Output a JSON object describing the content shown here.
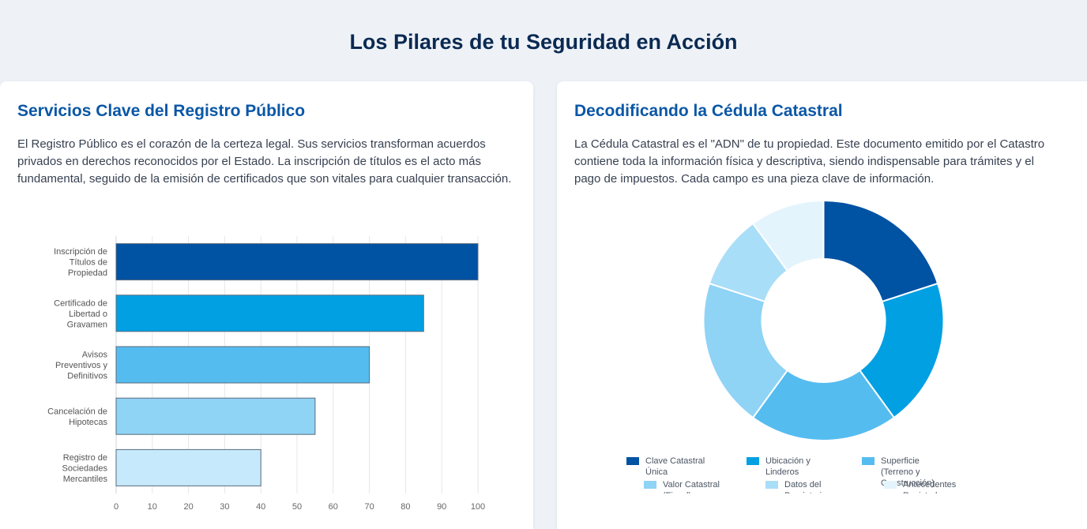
{
  "page": {
    "title": "Los Pilares de tu Seguridad en Acción"
  },
  "left_card": {
    "heading": "Servicios Clave del Registro Público",
    "description": "El Registro Público es el corazón de la certeza legal. Sus servicios transforman acuerdos privados en derechos reconocidos por el Estado. La inscripción de títulos es el acto más fundamental, seguido de la emisión de certificados que son vitales para cualquier transacción."
  },
  "right_card": {
    "heading": "Decodificando la Cédula Catastral",
    "description": "La Cédula Catastral es el \"ADN\" de tu propiedad. Este documento emitido por el Catastro contiene toda la información física y descriptiva, siendo indispensable para trámites y el pago de impuestos. Cada campo es una pieza clave de información."
  },
  "chart_data": [
    {
      "type": "bar",
      "orientation": "horizontal",
      "categories": [
        [
          "Inscripción de",
          "Títulos de",
          "Propiedad"
        ],
        [
          "Certificado de",
          "Libertad o",
          "Gravamen"
        ],
        [
          "Avisos",
          "Preventivos y",
          "Definitivos"
        ],
        [
          "Cancelación de",
          "Hipotecas"
        ],
        [
          "Registro de",
          "Sociedades",
          "Mercantiles"
        ]
      ],
      "values": [
        100,
        85,
        70,
        55,
        40
      ],
      "colors": [
        "#0052a3",
        "#00a0e3",
        "#55bcef",
        "#8fd3f5",
        "#c6e9fb"
      ],
      "xlim": [
        0,
        100
      ],
      "xticks": [
        0,
        10,
        20,
        30,
        40,
        50,
        60,
        70,
        80,
        90,
        100
      ],
      "grid": true,
      "legend": "none"
    },
    {
      "type": "pie",
      "variant": "doughnut",
      "labels": [
        [
          "Clave Catastral",
          "Única"
        ],
        [
          "Ubicación y",
          "Linderos"
        ],
        [
          "Superficie",
          "(Terreno y",
          "Construcción)"
        ],
        [
          "Valor Catastral",
          "(Fiscal)"
        ],
        [
          "Datos del",
          "Propietario"
        ],
        [
          "Antecedentes",
          "Registrales"
        ]
      ],
      "values": [
        20,
        20,
        20,
        20,
        10,
        10
      ],
      "colors": [
        "#0052a3",
        "#00a0e3",
        "#55bcef",
        "#8fd3f5",
        "#a9def8",
        "#e4f4fd"
      ],
      "legend": "bottom"
    }
  ]
}
